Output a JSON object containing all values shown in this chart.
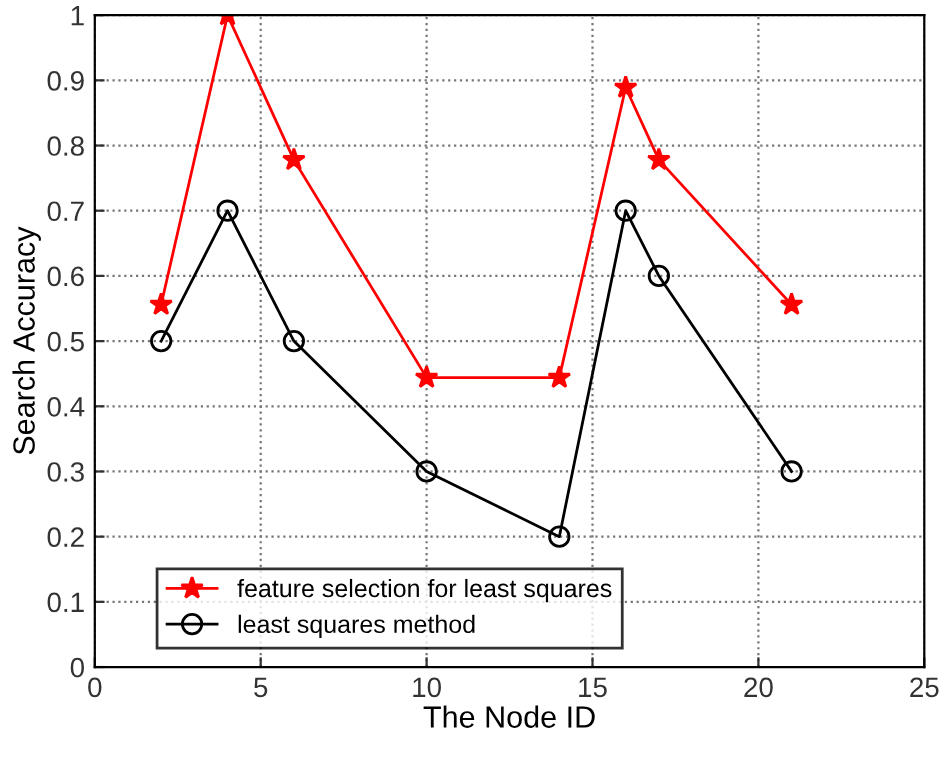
{
  "chart_data": {
    "type": "line",
    "xlabel": "The Node ID",
    "ylabel": "Search Accuracy",
    "x": [
      2,
      4,
      6,
      10,
      14,
      16,
      17,
      21
    ],
    "series": [
      {
        "name": "feature selection for least squares",
        "color": "#ff0000",
        "marker": "star",
        "values": [
          0.556,
          1.0,
          0.778,
          0.444,
          0.444,
          0.889,
          0.778,
          0.556
        ]
      },
      {
        "name": "least squares method",
        "color": "#000000",
        "marker": "circle",
        "values": [
          0.5,
          0.7,
          0.5,
          0.3,
          0.2,
          0.7,
          0.6,
          0.3
        ]
      }
    ],
    "xlim": [
      0,
      25
    ],
    "xticks": [
      0,
      5,
      10,
      15,
      20,
      25
    ],
    "ylim": [
      0,
      1
    ],
    "yticks": [
      0,
      0.1,
      0.2,
      0.3,
      0.4,
      0.5,
      0.6,
      0.7,
      0.8,
      0.9,
      1
    ],
    "grid": true,
    "legend": "bottom left",
    "line_style": "solid"
  }
}
